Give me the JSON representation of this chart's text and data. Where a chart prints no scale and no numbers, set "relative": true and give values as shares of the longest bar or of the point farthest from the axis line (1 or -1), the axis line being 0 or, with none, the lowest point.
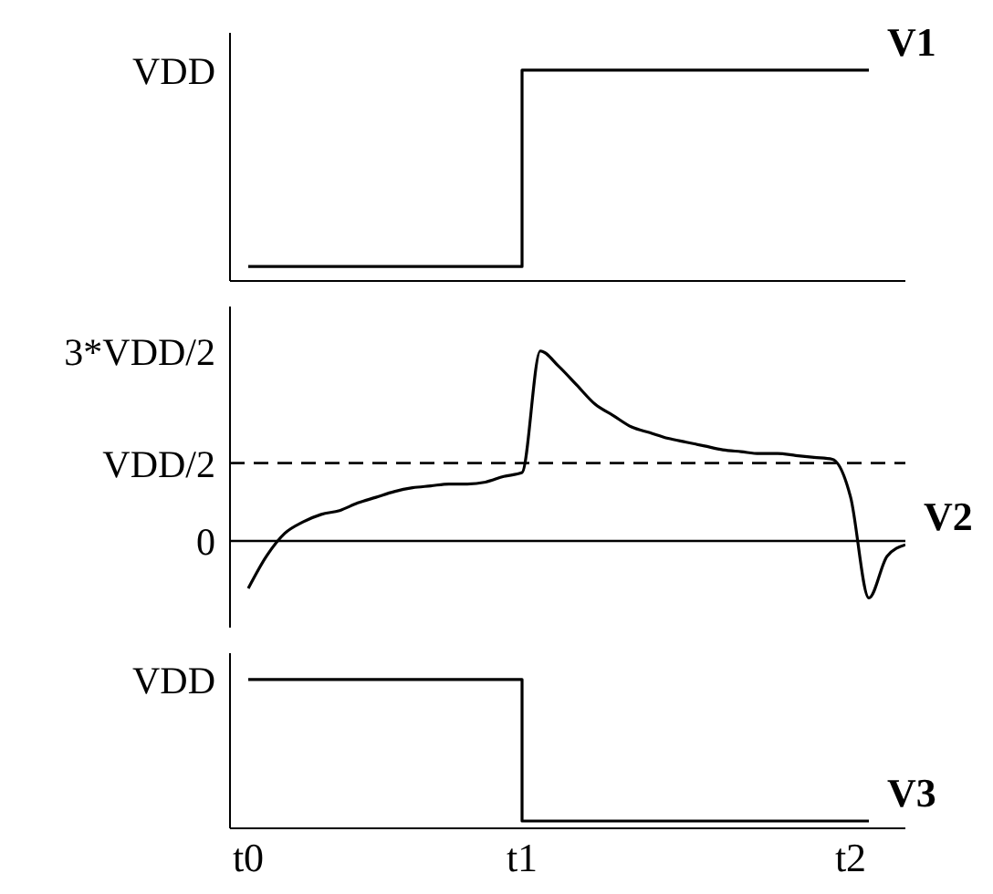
{
  "chart_data": [
    {
      "type": "step",
      "relative": true,
      "categories": [
        null,
        null,
        null,
        null,
        null,
        null,
        null,
        null,
        null,
        null,
        null,
        null,
        null,
        null,
        null,
        null,
        null,
        null,
        null,
        null,
        null,
        null,
        null,
        null,
        null,
        null,
        null,
        null,
        null,
        null,
        null,
        null,
        null,
        null,
        null,
        null,
        null
      ],
      "tick_labels": false,
      "grid": false,
      "legend": false,
      "marker": "none",
      "line_style": "solid",
      "annotations": [
        "VDD"
      ],
      "series": [
        {
          "name": "V1",
          "color": "#000000",
          "values": [
            0.05,
            0.05,
            0.05,
            0.05,
            0.05,
            0.05,
            0.05,
            0.05,
            0.05,
            0.05,
            0.05,
            0.05,
            0.05,
            0.05,
            0.05,
            1,
            1,
            1,
            1,
            1,
            1,
            1,
            1,
            1,
            1,
            1,
            1,
            1,
            1,
            1,
            1,
            1,
            1,
            1,
            1,
            null,
            null
          ]
        }
      ]
    },
    {
      "type": "line",
      "relative": true,
      "categories": [
        null,
        null,
        null,
        null,
        null,
        null,
        null,
        null,
        null,
        null,
        null,
        null,
        null,
        null,
        null,
        null,
        null,
        null,
        null,
        null,
        null,
        null,
        null,
        null,
        null,
        null,
        null,
        null,
        null,
        null,
        null,
        null,
        null,
        null,
        null,
        null,
        null
      ],
      "tick_labels": false,
      "grid": false,
      "legend": false,
      "marker": "none",
      "line_style": "solid",
      "annotations": [
        "3*VDD/2"
      ],
      "ref_lines": [
        {
          "axis": "y",
          "value": 0.41,
          "label": "VDD/2",
          "line_style": "dashed",
          "color": "#000000"
        },
        {
          "axis": "y",
          "value": 0,
          "label": "0",
          "line_style": "solid",
          "color": "#000000"
        }
      ],
      "series": [
        {
          "name": "V2",
          "color": "#000000",
          "values": [
            -0.25,
            -0.08,
            0.04,
            0.1,
            0.14,
            0.16,
            0.2,
            0.23,
            0.26,
            0.28,
            0.29,
            0.3,
            0.3,
            0.31,
            0.34,
            0.36,
            1,
            0.92,
            0.82,
            0.72,
            0.66,
            0.6,
            0.57,
            0.54,
            0.52,
            0.5,
            0.48,
            0.47,
            0.46,
            0.46,
            0.45,
            0.44,
            0.43,
            0.23,
            -0.3,
            -0.08,
            -0.02
          ]
        }
      ]
    },
    {
      "type": "step",
      "relative": true,
      "categories": [
        "t0",
        null,
        null,
        null,
        null,
        null,
        null,
        null,
        null,
        null,
        null,
        null,
        null,
        null,
        null,
        "t1",
        null,
        null,
        null,
        null,
        null,
        null,
        null,
        null,
        null,
        null,
        null,
        null,
        null,
        null,
        null,
        null,
        null,
        "t2",
        null,
        null,
        null
      ],
      "tick_labels": "x",
      "grid": false,
      "legend": false,
      "marker": "none",
      "line_style": "solid",
      "annotations": [
        "VDD"
      ],
      "series": [
        {
          "name": "V3",
          "color": "#000000",
          "values": [
            1,
            1,
            1,
            1,
            1,
            1,
            1,
            1,
            1,
            1,
            1,
            1,
            1,
            1,
            1,
            0.03,
            0.03,
            0.03,
            0.03,
            0.03,
            0.03,
            0.03,
            0.03,
            0.03,
            0.03,
            0.03,
            0.03,
            0.03,
            0.03,
            0.03,
            0.03,
            0.03,
            0.03,
            0.03,
            0.03,
            null,
            null
          ]
        }
      ]
    }
  ]
}
